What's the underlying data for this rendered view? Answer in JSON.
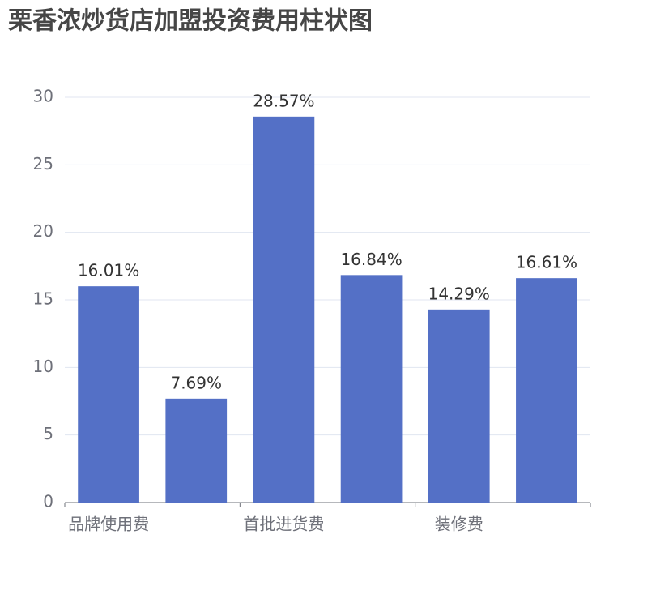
{
  "chart_data": {
    "type": "bar",
    "title": "栗香浓炒货店加盟投资费用柱状图",
    "categories": [
      "品牌使用费",
      null,
      "首批进货费",
      null,
      "装修费",
      null
    ],
    "values": [
      16.01,
      7.69,
      28.57,
      16.84,
      14.29,
      16.61
    ],
    "value_labels": [
      "16.01%",
      "7.69%",
      "28.57%",
      "16.84%",
      "14.29%",
      "16.61%"
    ],
    "color": "#5470c6",
    "ylim": [
      0,
      30
    ],
    "yticks": [
      0,
      5,
      10,
      15,
      20,
      25,
      30
    ],
    "grid": true
  }
}
